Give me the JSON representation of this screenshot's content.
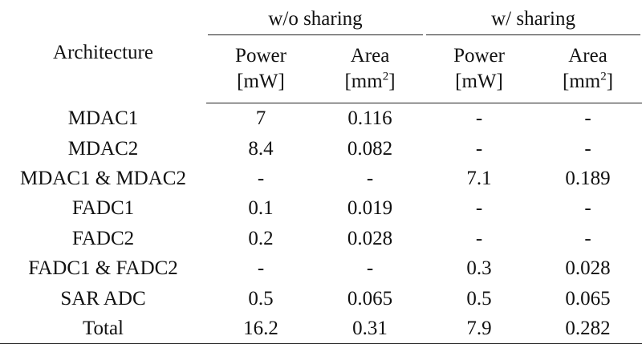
{
  "header": {
    "architecture": "Architecture",
    "groups": [
      "w/o sharing",
      "w/ sharing"
    ],
    "subcols": [
      {
        "label": "Power",
        "unit": "[mW]"
      },
      {
        "label": "Area",
        "unit_base": "[mm",
        "unit_sup": "2",
        "unit_close": "]"
      },
      {
        "label": "Power",
        "unit": "[mW]"
      },
      {
        "label": "Area",
        "unit_base": "[mm",
        "unit_sup": "2",
        "unit_close": "]"
      }
    ]
  },
  "rows": [
    {
      "name": "MDAC1",
      "cells": [
        "7",
        "0.116",
        "-",
        "-"
      ]
    },
    {
      "name": "MDAC2",
      "cells": [
        "8.4",
        "0.082",
        "-",
        "-"
      ]
    },
    {
      "name": "MDAC1 & MDAC2",
      "cells": [
        "-",
        "-",
        "7.1",
        "0.189"
      ]
    },
    {
      "name": "FADC1",
      "cells": [
        "0.1",
        "0.019",
        "-",
        "-"
      ]
    },
    {
      "name": "FADC2",
      "cells": [
        "0.2",
        "0.028",
        "-",
        "-"
      ]
    },
    {
      "name": "FADC1 & FADC2",
      "cells": [
        "-",
        "-",
        "0.3",
        "0.028"
      ]
    },
    {
      "name": "SAR ADC",
      "cells": [
        "0.5",
        "0.065",
        "0.5",
        "0.065"
      ]
    },
    {
      "name": "Total",
      "cells": [
        "16.2",
        "0.31",
        "7.9",
        "0.282"
      ]
    }
  ]
}
